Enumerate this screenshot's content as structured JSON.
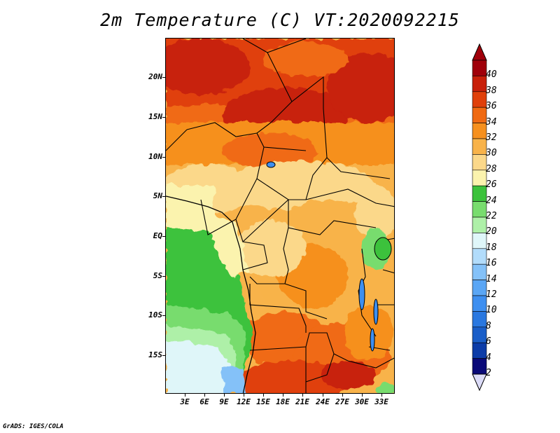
{
  "title": "2m Temperature (C) VT:2020092215",
  "credit": "GrADS: IGES/COLA",
  "lat_labels": [
    "20N",
    "15N",
    "10N",
    "5N",
    "EQ",
    "5S",
    "10S",
    "15S"
  ],
  "lon_labels": [
    "3E",
    "6E",
    "9E",
    "12E",
    "15E",
    "18E",
    "21E",
    "24E",
    "27E",
    "30E",
    "33E"
  ],
  "colorbar": {
    "levels": [
      "2",
      "4",
      "6",
      "8",
      "10",
      "12",
      "14",
      "16",
      "18",
      "20",
      "22",
      "24",
      "26",
      "28",
      "30",
      "32",
      "34",
      "36",
      "38",
      "40"
    ],
    "colors": [
      "#0a0a78",
      "#0c3ca8",
      "#1a5ec8",
      "#2a78e0",
      "#3e8ff0",
      "#5aa6f5",
      "#84c1f8",
      "#b2dcfb",
      "#dff6f9",
      "#aef0a8",
      "#78dc6e",
      "#3cc23c",
      "#fbf3ae",
      "#fbd88a",
      "#f8b34a",
      "#f6901e",
      "#f06a12",
      "#e0400a",
      "#c8200a",
      "#a0000a"
    ],
    "under_color": "#dcdcf8",
    "over_color": "#a0000a"
  }
}
